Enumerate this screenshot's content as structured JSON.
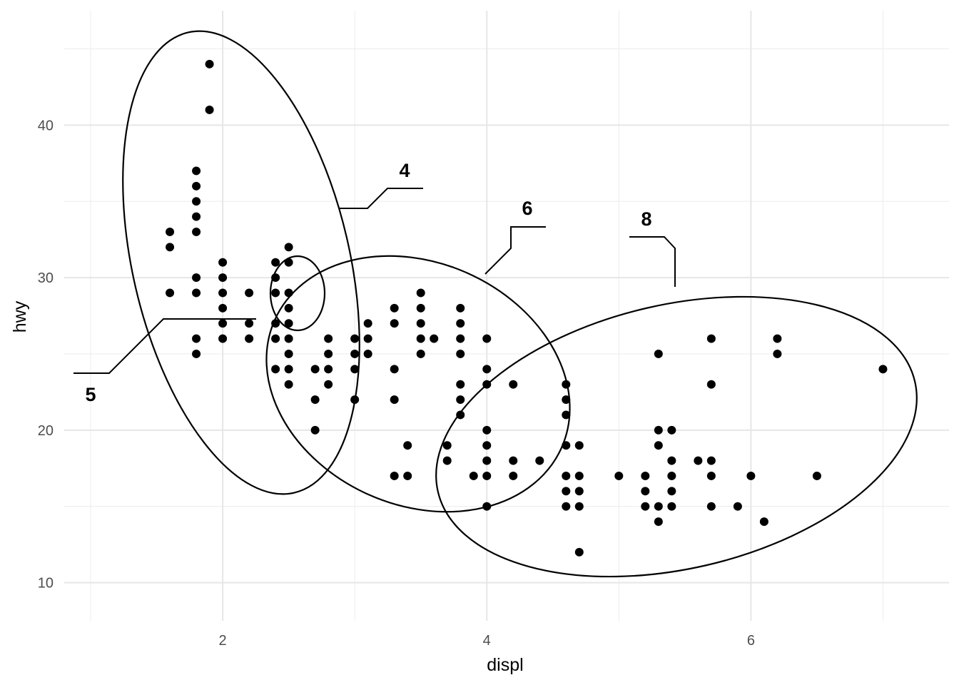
{
  "chart_data": {
    "type": "scatter",
    "xlabel": "displ",
    "ylabel": "hwy",
    "xlim": [
      0.8,
      7.5
    ],
    "ylim": [
      7.5,
      47.5
    ],
    "x_ticks": [
      2,
      4,
      6
    ],
    "y_ticks": [
      10,
      20,
      30,
      40
    ],
    "grid": true,
    "points": [
      [
        1.9,
        44
      ],
      [
        1.9,
        41
      ],
      [
        1.8,
        37
      ],
      [
        1.8,
        36
      ],
      [
        1.8,
        35
      ],
      [
        1.8,
        34
      ],
      [
        1.8,
        33
      ],
      [
        1.8,
        30
      ],
      [
        1.8,
        29
      ],
      [
        1.8,
        26
      ],
      [
        1.8,
        25
      ],
      [
        1.6,
        33
      ],
      [
        1.6,
        32
      ],
      [
        1.6,
        29
      ],
      [
        2.0,
        31
      ],
      [
        2.0,
        30
      ],
      [
        2.0,
        29
      ],
      [
        2.0,
        28
      ],
      [
        2.0,
        27
      ],
      [
        2.0,
        26
      ],
      [
        2.2,
        29
      ],
      [
        2.2,
        27
      ],
      [
        2.2,
        26
      ],
      [
        2.4,
        31
      ],
      [
        2.4,
        30
      ],
      [
        2.4,
        29
      ],
      [
        2.4,
        27
      ],
      [
        2.4,
        26
      ],
      [
        2.4,
        24
      ],
      [
        2.5,
        32
      ],
      [
        2.5,
        31
      ],
      [
        2.5,
        29
      ],
      [
        2.5,
        28
      ],
      [
        2.5,
        27
      ],
      [
        2.5,
        26
      ],
      [
        2.5,
        25
      ],
      [
        2.5,
        24
      ],
      [
        2.5,
        23
      ],
      [
        2.7,
        24
      ],
      [
        2.7,
        22
      ],
      [
        2.7,
        20
      ],
      [
        2.8,
        26
      ],
      [
        2.8,
        25
      ],
      [
        2.8,
        24
      ],
      [
        2.8,
        23
      ],
      [
        3.0,
        26
      ],
      [
        3.0,
        25
      ],
      [
        3.0,
        24
      ],
      [
        3.0,
        22
      ],
      [
        3.1,
        27
      ],
      [
        3.1,
        26
      ],
      [
        3.1,
        25
      ],
      [
        3.3,
        28
      ],
      [
        3.3,
        27
      ],
      [
        3.3,
        24
      ],
      [
        3.3,
        22
      ],
      [
        3.3,
        17
      ],
      [
        3.4,
        19
      ],
      [
        3.4,
        17
      ],
      [
        3.5,
        29
      ],
      [
        3.5,
        28
      ],
      [
        3.5,
        27
      ],
      [
        3.5,
        26
      ],
      [
        3.5,
        25
      ],
      [
        3.6,
        26
      ],
      [
        3.7,
        19
      ],
      [
        3.7,
        18
      ],
      [
        3.8,
        28
      ],
      [
        3.8,
        27
      ],
      [
        3.8,
        26
      ],
      [
        3.8,
        25
      ],
      [
        3.8,
        23
      ],
      [
        3.8,
        22
      ],
      [
        3.8,
        21
      ],
      [
        3.9,
        17
      ],
      [
        4.0,
        26
      ],
      [
        4.0,
        24
      ],
      [
        4.0,
        23
      ],
      [
        4.0,
        20
      ],
      [
        4.0,
        19
      ],
      [
        4.0,
        18
      ],
      [
        4.0,
        17
      ],
      [
        4.0,
        15
      ],
      [
        4.2,
        23
      ],
      [
        4.2,
        18
      ],
      [
        4.2,
        17
      ],
      [
        4.4,
        18
      ],
      [
        4.6,
        23
      ],
      [
        4.6,
        22
      ],
      [
        4.6,
        21
      ],
      [
        4.6,
        19
      ],
      [
        4.6,
        17
      ],
      [
        4.6,
        16
      ],
      [
        4.6,
        15
      ],
      [
        4.7,
        19
      ],
      [
        4.7,
        17
      ],
      [
        4.7,
        16
      ],
      [
        4.7,
        15
      ],
      [
        4.7,
        12
      ],
      [
        5.0,
        17
      ],
      [
        5.2,
        17
      ],
      [
        5.2,
        16
      ],
      [
        5.2,
        15
      ],
      [
        5.3,
        25
      ],
      [
        5.3,
        20
      ],
      [
        5.3,
        19
      ],
      [
        5.3,
        15
      ],
      [
        5.3,
        14
      ],
      [
        5.4,
        20
      ],
      [
        5.4,
        18
      ],
      [
        5.4,
        17
      ],
      [
        5.4,
        16
      ],
      [
        5.4,
        15
      ],
      [
        5.6,
        18
      ],
      [
        5.7,
        26
      ],
      [
        5.7,
        23
      ],
      [
        5.7,
        18
      ],
      [
        5.7,
        17
      ],
      [
        5.7,
        15
      ],
      [
        5.9,
        15
      ],
      [
        6.0,
        17
      ],
      [
        6.1,
        14
      ],
      [
        6.2,
        26
      ],
      [
        6.2,
        25
      ],
      [
        6.5,
        17
      ],
      [
        7.0,
        24
      ]
    ],
    "annotations": [
      "4",
      "5",
      "6",
      "8"
    ]
  }
}
